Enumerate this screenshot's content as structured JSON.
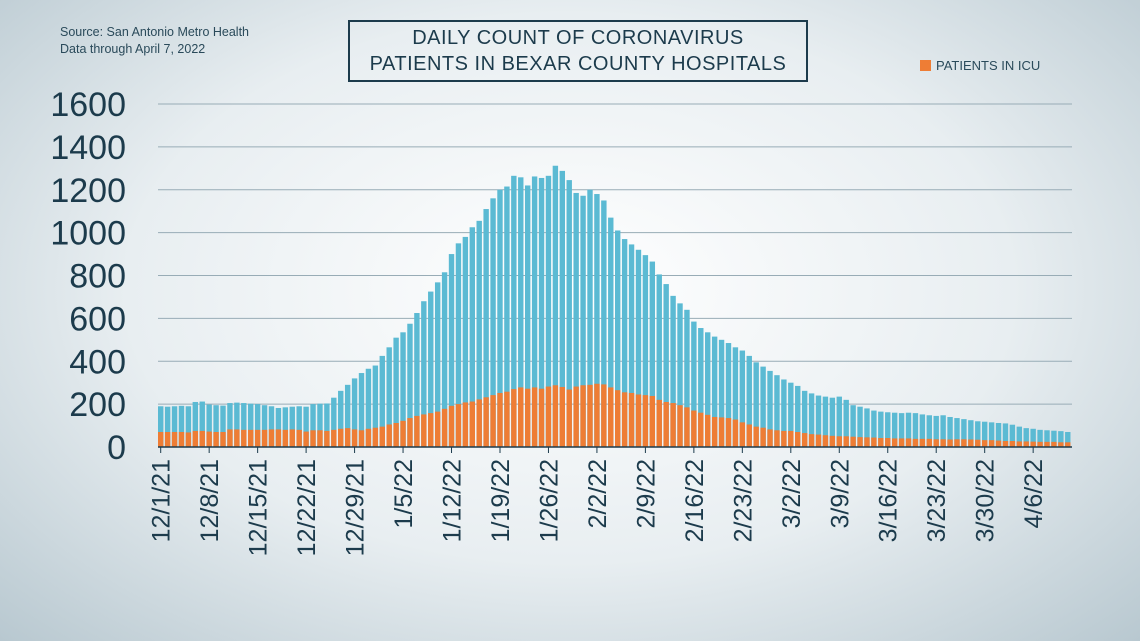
{
  "source": {
    "line1": "Source: San Antonio Metro Health",
    "line2": "Data through April 7, 2022"
  },
  "colors": {
    "total": "#5bbad3",
    "icu": "#ee7d35",
    "grid": "#98acb6",
    "text": "#1c3b4c"
  },
  "chart_data": {
    "type": "bar",
    "title": [
      "DAILY COUNT OF CORONAVIRUS",
      "PATIENTS IN BEXAR COUNTY HOSPITALS"
    ],
    "legend": "PATIENTS IN ICU",
    "legend_position": "top-right",
    "grid": true,
    "ylim": [
      0,
      1600
    ],
    "y_ticks": [
      0,
      200,
      400,
      600,
      800,
      1000,
      1200,
      1400,
      1600
    ],
    "x_tick_labels": [
      "12/1/21",
      "12/8/21",
      "12/15/21",
      "12/22/21",
      "12/29/21",
      "1/5/22",
      "1/12/22",
      "1/19/22",
      "1/26/22",
      "2/2/22",
      "2/9/22",
      "2/16/22",
      "2/23/22",
      "3/2/22",
      "3/9/22",
      "3/16/22",
      "3/23/22",
      "3/30/22",
      "4/6/22"
    ],
    "x_tick_every": 7,
    "series": [
      {
        "name": "",
        "values": [
          190,
          188,
          190,
          192,
          190,
          210,
          212,
          198,
          195,
          193,
          205,
          207,
          205,
          202,
          200,
          195,
          190,
          182,
          185,
          188,
          190,
          188,
          200,
          202,
          203,
          230,
          262,
          290,
          320,
          345,
          365,
          380,
          425,
          465,
          510,
          535,
          575,
          625,
          680,
          725,
          768,
          815,
          900,
          950,
          980,
          1025,
          1055,
          1110,
          1160,
          1200,
          1215,
          1265,
          1258,
          1220,
          1262,
          1255,
          1265,
          1312,
          1288,
          1245,
          1185,
          1172,
          1200,
          1180,
          1150,
          1070,
          1010,
          970,
          945,
          920,
          895,
          865,
          805,
          760,
          705,
          670,
          640,
          585,
          555,
          535,
          515,
          500,
          485,
          465,
          450,
          425,
          395,
          375,
          355,
          335,
          315,
          300,
          285,
          262,
          250,
          240,
          235,
          230,
          235,
          220,
          195,
          188,
          180,
          170,
          165,
          162,
          160,
          158,
          160,
          158,
          152,
          148,
          145,
          148,
          140,
          135,
          130,
          125,
          120,
          118,
          115,
          112,
          110,
          104,
          95,
          88,
          85,
          80,
          78,
          76,
          74,
          70
        ]
      },
      {
        "name": "PATIENTS IN ICU",
        "values": [
          70,
          70,
          70,
          70,
          68,
          75,
          75,
          72,
          70,
          70,
          82,
          82,
          80,
          80,
          80,
          80,
          82,
          82,
          80,
          82,
          80,
          72,
          78,
          78,
          75,
          80,
          85,
          88,
          82,
          78,
          85,
          90,
          95,
          105,
          112,
          122,
          135,
          145,
          152,
          158,
          165,
          178,
          192,
          200,
          208,
          212,
          222,
          232,
          242,
          252,
          258,
          270,
          278,
          272,
          278,
          272,
          282,
          288,
          280,
          268,
          282,
          288,
          290,
          295,
          292,
          278,
          265,
          255,
          252,
          245,
          242,
          238,
          220,
          210,
          205,
          195,
          185,
          170,
          160,
          150,
          140,
          138,
          135,
          128,
          115,
          105,
          95,
          90,
          82,
          78,
          75,
          75,
          70,
          65,
          60,
          58,
          55,
          52,
          50,
          50,
          48,
          46,
          45,
          44,
          42,
          42,
          40,
          40,
          40,
          38,
          38,
          38,
          36,
          36,
          35,
          36,
          36,
          35,
          34,
          32,
          32,
          30,
          28,
          28,
          26,
          26,
          25,
          24,
          24,
          24,
          22,
          22
        ]
      }
    ]
  }
}
